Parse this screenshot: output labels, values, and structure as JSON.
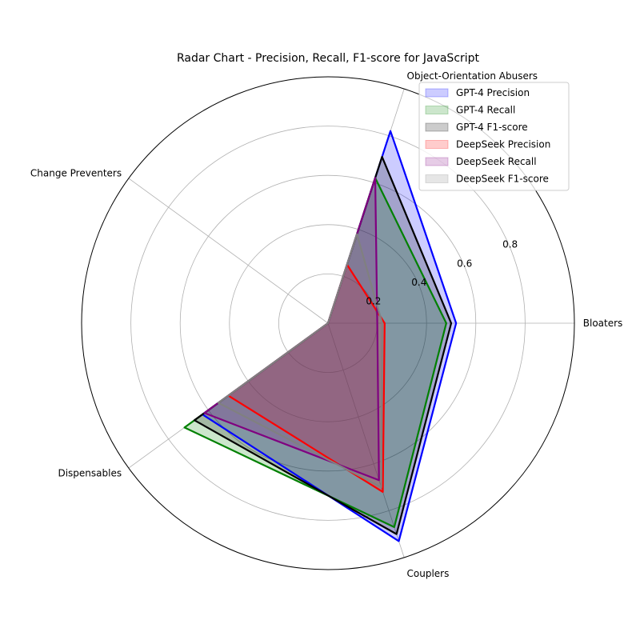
{
  "chart_data": {
    "type": "radar",
    "title": "Radar Chart - Precision, Recall, F1-score for JavaScript",
    "categories": [
      "Bloaters",
      "Object-Orientation Abusers",
      "Change Preventers",
      "Dispensables",
      "Couplers"
    ],
    "rlim": [
      0,
      1.0
    ],
    "rticks": [
      0.2,
      0.4,
      0.6,
      0.8
    ],
    "rtick_labels": [
      "0.2",
      "0.4",
      "0.6",
      "0.8"
    ],
    "grid": true,
    "legend_position": "top-right",
    "series": [
      {
        "name": "GPT-4 Precision",
        "values": [
          0.52,
          0.82,
          0.0,
          0.63,
          0.93
        ],
        "line_color": "#0000ff",
        "fill_color": "#0000ff"
      },
      {
        "name": "GPT-4 Recall",
        "values": [
          0.48,
          0.62,
          0.0,
          0.72,
          0.87
        ],
        "line_color": "#008000",
        "fill_color": "#008000"
      },
      {
        "name": "GPT-4 F1-score",
        "values": [
          0.5,
          0.71,
          0.0,
          0.67,
          0.9
        ],
        "line_color": "#000000",
        "fill_color": "#000000"
      },
      {
        "name": "DeepSeek Precision",
        "values": [
          0.23,
          0.25,
          0.0,
          0.5,
          0.72
        ],
        "line_color": "#ff0000",
        "fill_color": "#ff0000"
      },
      {
        "name": "DeepSeek Recall",
        "values": [
          0.2,
          0.62,
          0.0,
          0.62,
          0.67
        ],
        "line_color": "#800080",
        "fill_color": "#800080"
      },
      {
        "name": "DeepSeek F1-score",
        "values": [
          0.22,
          0.38,
          0.0,
          0.55,
          0.7
        ],
        "line_color": "#808080",
        "fill_color": "#808080"
      }
    ]
  }
}
